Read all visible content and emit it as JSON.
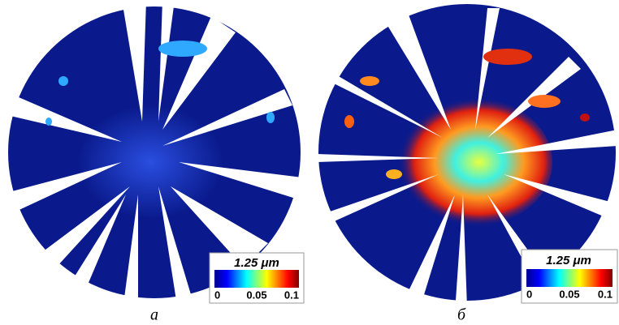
{
  "panels": [
    {
      "caption": "а",
      "colorbar": {
        "title": "1.25 μm",
        "ticks": [
          0,
          0.05,
          0.1
        ]
      }
    },
    {
      "caption": "б",
      "colorbar": {
        "title": "1.25 μm",
        "ticks": [
          0,
          0.05,
          0.1
        ]
      }
    }
  ]
}
